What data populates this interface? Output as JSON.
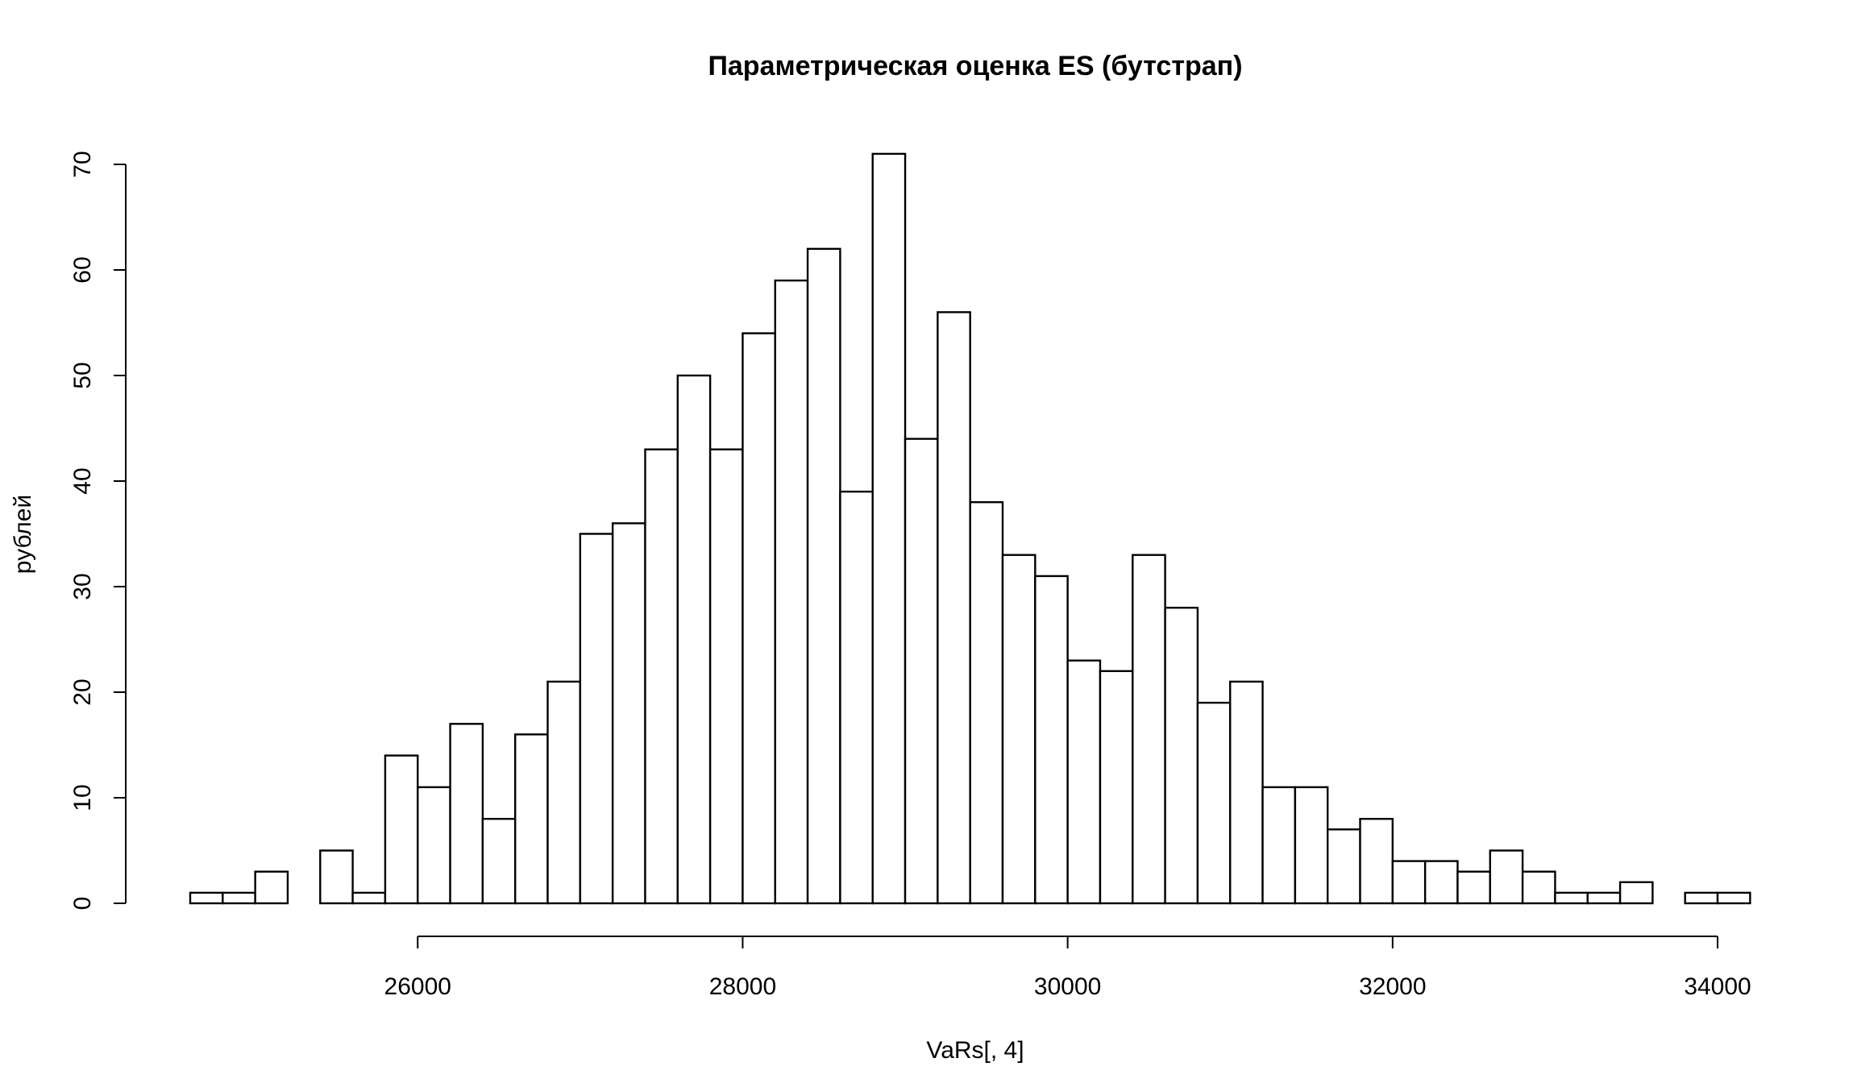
{
  "chart_data": {
    "type": "bar",
    "title": "Параметрическая оценка ES (бутстрап)",
    "xlabel": "VaRs[, 4]",
    "ylabel": "рублей",
    "bin_width": 200,
    "x_start": 24600,
    "xlim": [
      24600,
      34200
    ],
    "ylim": [
      0,
      70
    ],
    "x_ticks": [
      "26000",
      "28000",
      "30000",
      "32000",
      "34000"
    ],
    "x_tick_values": [
      26000,
      28000,
      30000,
      32000,
      34000
    ],
    "y_ticks": [
      "0",
      "10",
      "20",
      "30",
      "40",
      "50",
      "60",
      "70"
    ],
    "y_tick_values": [
      0,
      10,
      20,
      30,
      40,
      50,
      60,
      70
    ],
    "values": [
      1,
      1,
      3,
      0,
      5,
      1,
      14,
      11,
      17,
      8,
      16,
      21,
      35,
      36,
      43,
      50,
      43,
      54,
      59,
      62,
      39,
      71,
      44,
      56,
      38,
      33,
      31,
      23,
      22,
      33,
      28,
      19,
      21,
      11,
      11,
      7,
      8,
      4,
      4,
      3,
      5,
      3,
      1,
      1,
      2,
      0,
      1,
      1
    ],
    "grid": false,
    "colors": {
      "bar_fill": "#ffffff",
      "bar_stroke": "#000000",
      "axis": "#000000"
    }
  }
}
